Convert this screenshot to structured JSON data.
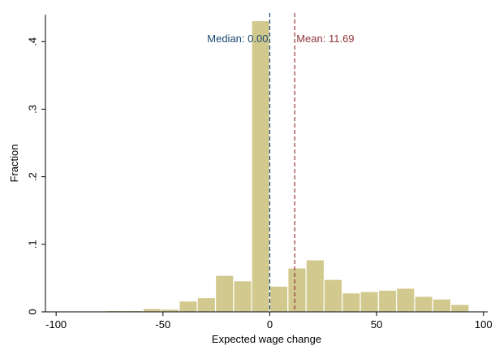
{
  "chart_data": {
    "type": "bar",
    "subtype": "histogram",
    "xlabel": "Expected wage change",
    "ylabel": "Fraction",
    "xlim": [
      -105,
      102
    ],
    "ylim": [
      0,
      0.44
    ],
    "xticks": [
      -100,
      -50,
      0,
      50,
      100
    ],
    "xtick_labels": [
      "-100",
      "-50",
      "0",
      "50",
      "100"
    ],
    "yticks": [
      0,
      0.1,
      0.2,
      0.3,
      0.4
    ],
    "ytick_labels": [
      "0",
      ".1",
      ".2",
      ".3",
      ".4"
    ],
    "grid": false,
    "bin_width": 8.48,
    "bins": [
      {
        "x0": -76.3,
        "value": 0.002
      },
      {
        "x0": -67.8,
        "value": 0.002
      },
      {
        "x0": -59.3,
        "value": 0.005
      },
      {
        "x0": -50.9,
        "value": 0.004
      },
      {
        "x0": -42.4,
        "value": 0.016
      },
      {
        "x0": -33.9,
        "value": 0.021
      },
      {
        "x0": -25.4,
        "value": 0.054
      },
      {
        "x0": -16.9,
        "value": 0.046
      },
      {
        "x0": -8.5,
        "value": 0.431
      },
      {
        "x0": 0.0,
        "value": 0.038
      },
      {
        "x0": 8.5,
        "value": 0.065
      },
      {
        "x0": 17.0,
        "value": 0.077
      },
      {
        "x0": 25.4,
        "value": 0.048
      },
      {
        "x0": 33.9,
        "value": 0.028
      },
      {
        "x0": 42.4,
        "value": 0.03
      },
      {
        "x0": 50.9,
        "value": 0.032
      },
      {
        "x0": 59.3,
        "value": 0.035
      },
      {
        "x0": 67.8,
        "value": 0.023
      },
      {
        "x0": 76.3,
        "value": 0.019
      },
      {
        "x0": 84.8,
        "value": 0.011
      }
    ],
    "reference_lines": [
      {
        "x": 0.0,
        "label": "Median:  0.00",
        "color": "#1a476f"
      },
      {
        "x": 11.69,
        "label": "Mean: 11.69",
        "color": "#90353b"
      }
    ],
    "colors": {
      "bar_fill": "#d2c98f",
      "bar_stroke": "#ffffff",
      "axis": "#000000",
      "median": "#1a476f",
      "mean": "#90353b"
    }
  }
}
